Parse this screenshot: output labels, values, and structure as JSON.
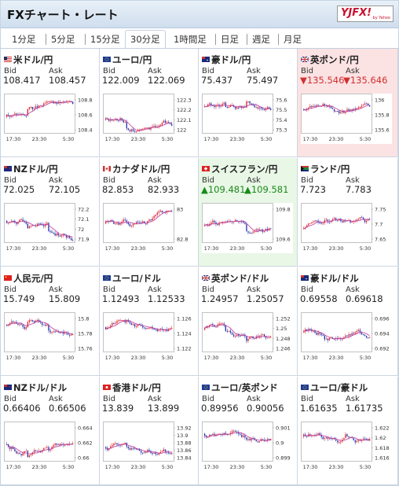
{
  "title": "FXチャート・レート",
  "logo": {
    "brand": "YJFX!",
    "sub": "by Yahoo"
  },
  "tabs": [
    {
      "label": "1分足",
      "selected": false
    },
    {
      "label": "5分足",
      "selected": false
    },
    {
      "label": "15分足",
      "selected": false
    },
    {
      "label": "30分足",
      "selected": true
    },
    {
      "label": "1時間足",
      "selected": false
    },
    {
      "label": "日足",
      "selected": false
    },
    {
      "label": "週足",
      "selected": false
    },
    {
      "label": "月足",
      "selected": false
    }
  ],
  "colors": {
    "up": "#d81e2a",
    "down": "#1f2fa8",
    "ma": "#c0379a",
    "highlight_down": "#fbe2e3",
    "highlight_up": "#e9f7e6"
  },
  "labels": {
    "bid": "Bid",
    "ask": "Ask"
  },
  "pairs": [
    {
      "name": "米ドル/円",
      "flag": "us",
      "bid": "108.417",
      "ask": "108.457",
      "state": "none",
      "yticks": [
        "108.8",
        "108.6",
        "108.4"
      ],
      "xticks": [
        "17:30",
        "23:30",
        "5:30"
      ]
    },
    {
      "name": "ユーロ/円",
      "flag": "eu",
      "bid": "122.009",
      "ask": "122.069",
      "state": "none",
      "yticks": [
        "122.3",
        "122.2",
        "122.1",
        "122"
      ],
      "xticks": [
        "17:30",
        "23:30",
        "5:30"
      ]
    },
    {
      "name": "豪ドル/円",
      "flag": "au",
      "bid": "75.437",
      "ask": "75.497",
      "state": "none",
      "yticks": [
        "75.6",
        "75.5",
        "75.4",
        "75.3"
      ],
      "xticks": [
        "17:30",
        "23:30",
        "5:30"
      ]
    },
    {
      "name": "英ポンド/円",
      "flag": "gb",
      "bid": "▼135.546",
      "ask": "▼135.646",
      "state": "down",
      "yticks": [
        "136",
        "135.8",
        "135.6"
      ],
      "xticks": [
        "17:30",
        "23:30",
        "5:30"
      ]
    },
    {
      "name": "NZドル/円",
      "flag": "nz",
      "bid": "72.025",
      "ask": "72.105",
      "state": "none",
      "yticks": [
        "72.2",
        "72.1",
        "72",
        "71.9"
      ],
      "xticks": [
        "17:30",
        "23:30",
        "5:30"
      ]
    },
    {
      "name": "カナダドル/円",
      "flag": "ca",
      "bid": "82.853",
      "ask": "82.933",
      "state": "none",
      "yticks": [
        "83",
        "82.8"
      ],
      "xticks": [
        "17:30",
        "23:30",
        "5:30"
      ]
    },
    {
      "name": "スイスフラン/円",
      "flag": "ch",
      "bid": "▲109.481",
      "ask": "▲109.581",
      "state": "up",
      "yticks": [
        "109.8",
        "109.6"
      ],
      "xticks": [
        "17:30",
        "23:30",
        "5:30"
      ]
    },
    {
      "name": "ランド/円",
      "flag": "za",
      "bid": "7.723",
      "ask": "7.783",
      "state": "none",
      "yticks": [
        "7.75",
        "7.7",
        "7.65"
      ],
      "xticks": [
        "17:30",
        "23:30",
        "5:30"
      ]
    },
    {
      "name": "人民元/円",
      "flag": "cn",
      "bid": "15.749",
      "ask": "15.809",
      "state": "none",
      "yticks": [
        "15.8",
        "15.78",
        "15.76"
      ],
      "xticks": [
        "17:30",
        "23:30",
        "5:30"
      ]
    },
    {
      "name": "ユーロ/ドル",
      "flag": "eu",
      "bid": "1.12493",
      "ask": "1.12533",
      "state": "none",
      "yticks": [
        "1.126",
        "1.124",
        "1.122"
      ],
      "xticks": [
        "17:30",
        "23:30",
        "5:30"
      ]
    },
    {
      "name": "英ポンド/ドル",
      "flag": "gb",
      "bid": "1.24957",
      "ask": "1.25057",
      "state": "none",
      "yticks": [
        "1.252",
        "1.25",
        "1.248",
        "1.246"
      ],
      "xticks": [
        "17:30",
        "23:30",
        "5:30"
      ]
    },
    {
      "name": "豪ドル/ドル",
      "flag": "au",
      "bid": "0.69558",
      "ask": "0.69618",
      "state": "none",
      "yticks": [
        "0.696",
        "0.694",
        "0.692"
      ],
      "xticks": [
        "17:30",
        "23:30",
        "5:30"
      ]
    },
    {
      "name": "NZドル/ドル",
      "flag": "nz",
      "bid": "0.66406",
      "ask": "0.66506",
      "state": "none",
      "yticks": [
        "0.664",
        "0.662",
        "0.66"
      ],
      "xticks": [
        "17:30",
        "23:30",
        "5:30"
      ]
    },
    {
      "name": "香港ドル/円",
      "flag": "hk",
      "bid": "13.839",
      "ask": "13.899",
      "state": "none",
      "yticks": [
        "13.92",
        "13.9",
        "13.88",
        "13.86",
        "13.84"
      ],
      "xticks": [
        "17:30",
        "23:30",
        "5:30"
      ]
    },
    {
      "name": "ユーロ/英ポンド",
      "flag": "eu",
      "bid": "0.89956",
      "ask": "0.90056",
      "state": "none",
      "yticks": [
        "0.901",
        "0.9",
        "0.899"
      ],
      "xticks": [
        "17:30",
        "23:30",
        "5:30"
      ]
    },
    {
      "name": "ユーロ/豪ドル",
      "flag": "eu",
      "bid": "1.61635",
      "ask": "1.61735",
      "state": "none",
      "yticks": [
        "1.622",
        "1.62",
        "1.618",
        "1.616"
      ],
      "xticks": [
        "17:30",
        "23:30",
        "5:30"
      ]
    }
  ]
}
